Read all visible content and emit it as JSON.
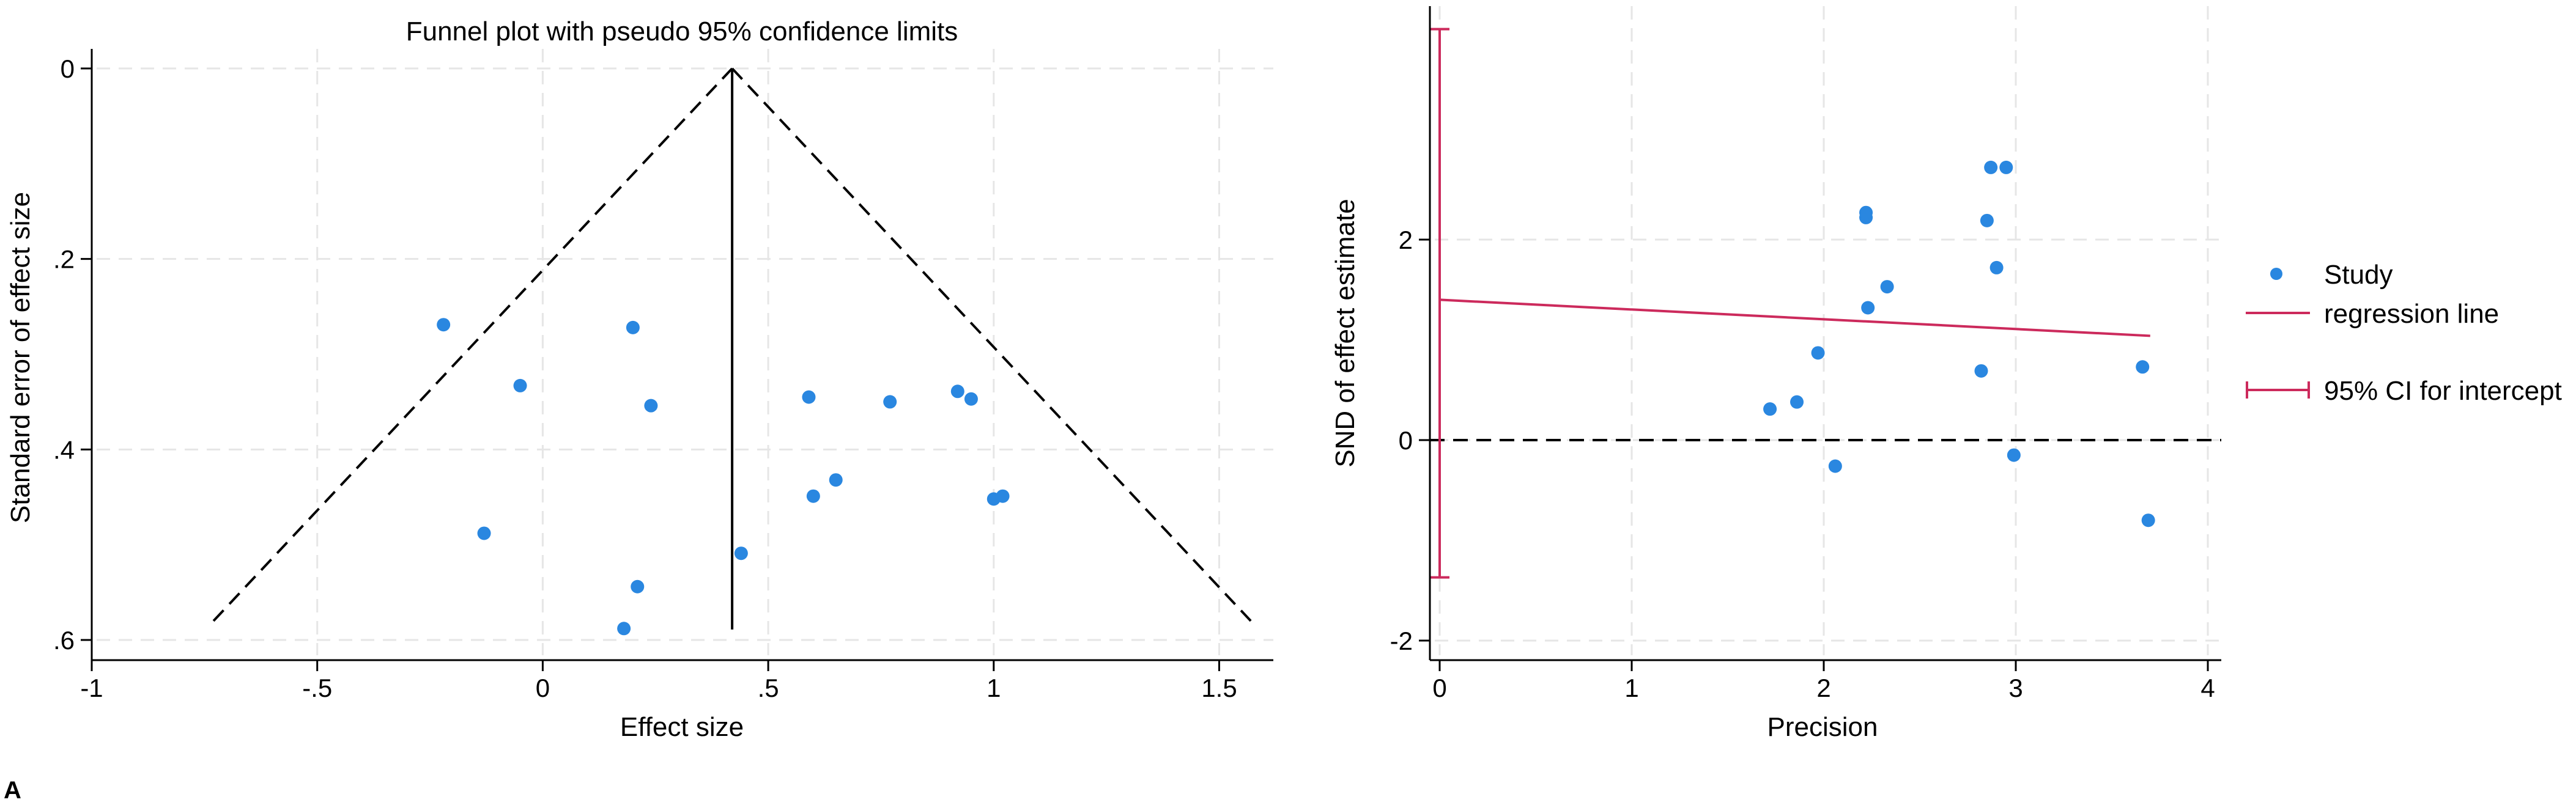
{
  "chart_data": [
    {
      "type": "scatter",
      "title": "Funnel plot with pseudo 95% confidence limits",
      "xlabel": "Effect size",
      "ylabel": "Standard error of effect size",
      "xlim": [
        -1,
        1.62
      ],
      "ylim": [
        0.6,
        0
      ],
      "y_reversed": true,
      "grid": true,
      "xticks": [
        {
          "value": -1,
          "label": "-1"
        },
        {
          "value": -0.5,
          "label": "-.5"
        },
        {
          "value": 0,
          "label": "0"
        },
        {
          "value": 0.5,
          "label": ".5"
        },
        {
          "value": 1,
          "label": "1"
        },
        {
          "value": 1.5,
          "label": "1.5"
        }
      ],
      "yticks": [
        {
          "value": 0,
          "label": "0"
        },
        {
          "value": 0.2,
          "label": ".2"
        },
        {
          "value": 0.4,
          "label": ".4"
        },
        {
          "value": 0.6,
          "label": ".6"
        }
      ],
      "pooled_effect": 0.42,
      "pooled_line_se_range": [
        0,
        0.589
      ],
      "funnel_lines": [
        {
          "x": [
            -0.73,
            0.42
          ],
          "y": [
            0.58,
            0
          ]
        },
        {
          "x": [
            0.42,
            1.57
          ],
          "y": [
            0,
            0.58
          ]
        }
      ],
      "point_color": "#2a87e0",
      "series": [
        {
          "x": [
            -0.22,
            -0.13,
            -0.05,
            0.2,
            0.24,
            0.21,
            0.18,
            0.44,
            0.59,
            0.6,
            0.65,
            0.77,
            0.92,
            0.95,
            1.0,
            1.02
          ],
          "y": [
            0.269,
            0.488,
            0.333,
            0.272,
            0.354,
            0.544,
            0.588,
            0.509,
            0.345,
            0.449,
            0.432,
            0.35,
            0.339,
            0.347,
            0.452,
            0.449
          ]
        }
      ]
    },
    {
      "type": "scatter",
      "title": "",
      "xlabel": "Precision",
      "ylabel": "SND of effect estimate",
      "xlim": [
        -0.05,
        4.05
      ],
      "ylim": [
        -2.05,
        4.3
      ],
      "grid": true,
      "xticks": [
        {
          "value": 0,
          "label": "0"
        },
        {
          "value": 1,
          "label": "1"
        },
        {
          "value": 2,
          "label": "2"
        },
        {
          "value": 3,
          "label": "3"
        },
        {
          "value": 4,
          "label": "4"
        }
      ],
      "yticks": [
        {
          "value": -2,
          "label": "-2"
        },
        {
          "value": 0,
          "label": "0"
        },
        {
          "value": 2,
          "label": "2"
        }
      ],
      "reference_line_y": 0,
      "regression_line": {
        "x": [
          0,
          3.7
        ],
        "y": [
          1.4,
          1.04
        ]
      },
      "intercept_ci": {
        "x": 0,
        "low": -1.37,
        "high": 4.1
      },
      "colors": {
        "study": "#2a87e0",
        "regression": "#cc2a5c"
      },
      "legend": {
        "position": "right",
        "entries": [
          {
            "label": "Study",
            "kind": "point"
          },
          {
            "label": "regression line",
            "kind": "line"
          },
          {
            "label": "95% CI for intercept",
            "kind": "capped-bar"
          }
        ]
      },
      "series": [
        {
          "name": "Study",
          "x": [
            1.72,
            1.86,
            1.97,
            2.06,
            2.22,
            2.22,
            2.23,
            2.33,
            2.82,
            2.85,
            2.87,
            2.9,
            2.95,
            2.99,
            3.66,
            3.69
          ],
          "y": [
            0.31,
            0.38,
            0.87,
            -0.26,
            2.22,
            2.27,
            1.32,
            1.53,
            0.69,
            2.19,
            2.72,
            1.72,
            2.72,
            -0.15,
            0.73,
            -0.8
          ]
        }
      ]
    }
  ],
  "figure_label": "A"
}
